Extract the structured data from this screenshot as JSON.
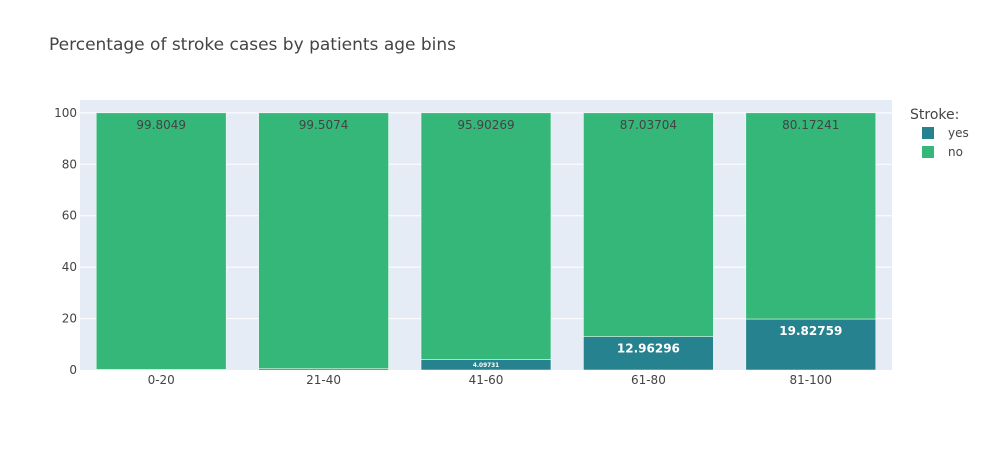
{
  "chart_data": {
    "type": "bar",
    "stacked": true,
    "title": "Percentage of stroke cases by patients age bins",
    "categories": [
      "0-20",
      "21-40",
      "41-60",
      "61-80",
      "81-100"
    ],
    "series": [
      {
        "name": "yes",
        "color": "#26828e",
        "values": [
          0.1951,
          0.4926,
          4.09731,
          12.96296,
          19.82759
        ],
        "labels": [
          "",
          "",
          "4.09731",
          "12.96296",
          "19.82759"
        ],
        "label_color": "#ffffff"
      },
      {
        "name": "no",
        "color": "#35b779",
        "values": [
          99.8049,
          99.5074,
          95.90269,
          87.03704,
          80.17241
        ],
        "labels": [
          "99.8049",
          "99.5074",
          "95.90269",
          "87.03704",
          "80.17241"
        ],
        "label_color": "#444444"
      }
    ],
    "xlabel": "",
    "ylabel": "",
    "ylim": [
      0,
      105
    ],
    "yticks": [
      0,
      20,
      40,
      60,
      80,
      100
    ],
    "grid": true,
    "legend": {
      "title": "Stroke:",
      "position": "top-right"
    },
    "plot_background": "#e5ecf6"
  }
}
